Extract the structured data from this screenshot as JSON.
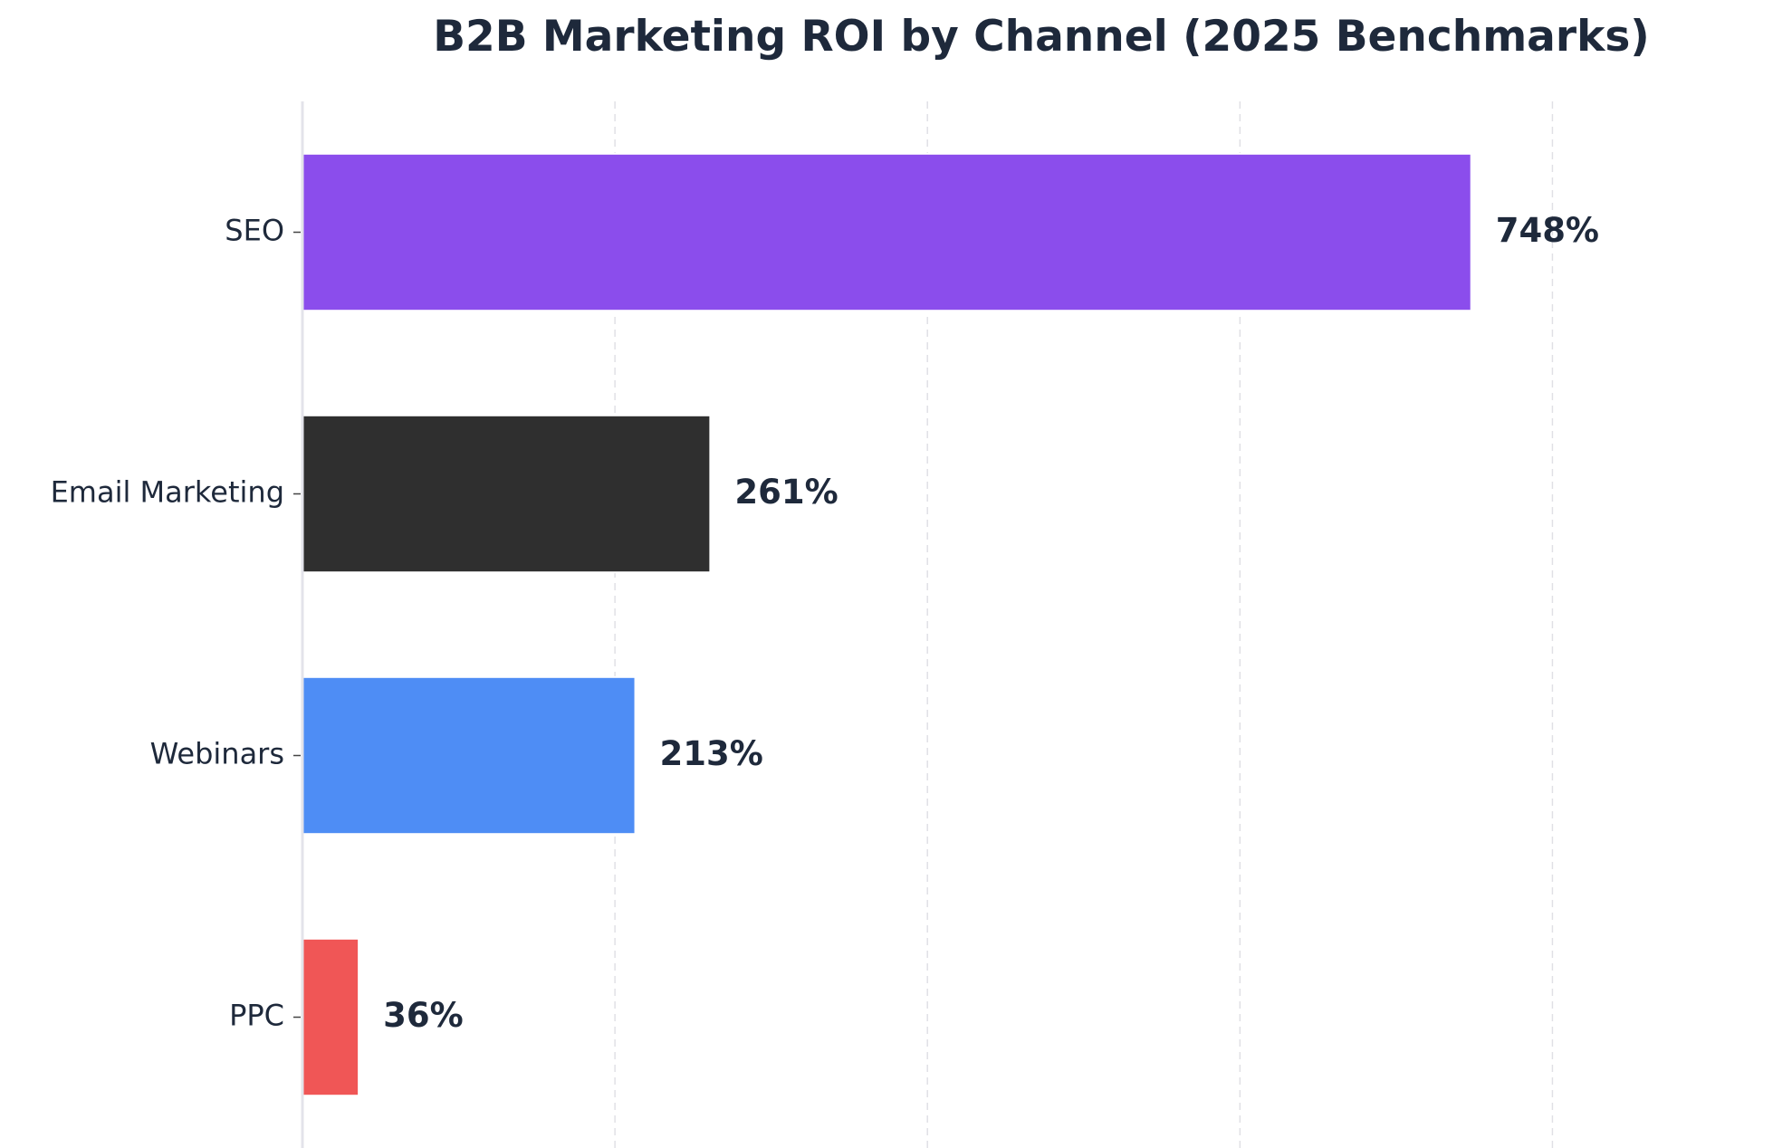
{
  "chart_data": {
    "type": "bar",
    "orientation": "horizontal",
    "title": "B2B Marketing ROI by Channel (2025 Benchmarks)",
    "categories": [
      "SEO",
      "Email Marketing",
      "Webinars",
      "PPC"
    ],
    "values": [
      748,
      261,
      213,
      36
    ],
    "value_labels": [
      "748%",
      "261%",
      "213%",
      "36%"
    ],
    "colors": [
      "#8b4dec",
      "#2f2f2f",
      "#4e8df5",
      "#f05656"
    ],
    "xlim": [
      0,
      900
    ],
    "x_grid_ticks": [
      200,
      400,
      600,
      800
    ],
    "grid": true,
    "xlabel": "",
    "ylabel": ""
  }
}
